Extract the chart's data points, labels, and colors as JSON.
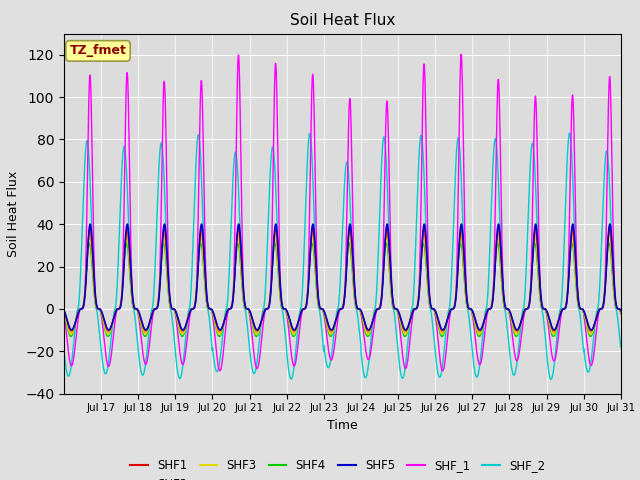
{
  "title": "Soil Heat Flux",
  "xlabel": "Time",
  "ylabel": "Soil Heat Flux",
  "ylim": [
    -40,
    130
  ],
  "yticks": [
    -40,
    -20,
    0,
    20,
    40,
    60,
    80,
    100,
    120
  ],
  "fig_bg": "#e0e0e0",
  "plot_bg": "#dcdcdc",
  "annotation_text": "TZ_fmet",
  "annotation_color": "#8B0000",
  "annotation_bg": "#ffff99",
  "annotation_edge": "#999944",
  "series": {
    "SHF1": {
      "color": "#dd0000",
      "lw": 1.0
    },
    "SHF2": {
      "color": "#ff8800",
      "lw": 1.0
    },
    "SHF3": {
      "color": "#dddd00",
      "lw": 1.0
    },
    "SHF4": {
      "color": "#00cc00",
      "lw": 1.0
    },
    "SHF5": {
      "color": "#0000cc",
      "lw": 1.2
    },
    "SHF_1": {
      "color": "#ff00ff",
      "lw": 1.0
    },
    "SHF_2": {
      "color": "#00cccc",
      "lw": 1.0
    }
  },
  "n_days": 15,
  "ppd": 288,
  "shf1_peak": 38,
  "shf1_night": -10,
  "shf2_peak": 36,
  "shf2_night": -11,
  "shf3_peak": 34,
  "shf3_night": -12,
  "shf4_peak": 31,
  "shf4_night": -13,
  "shf5_peak": 40,
  "shf5_night": -10,
  "shf_1_peak": 115,
  "shf_1_night": -28,
  "shf_2_peak": 80,
  "shf_2_night": -32
}
